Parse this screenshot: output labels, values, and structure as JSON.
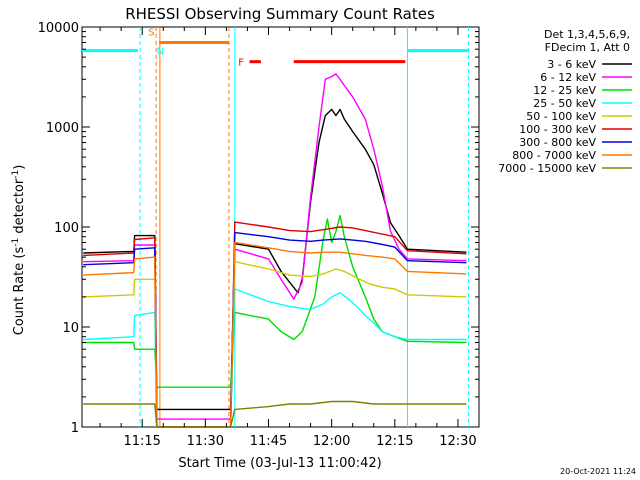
{
  "chart_data": {
    "type": "line",
    "title": "RHESSI Observing Summary Count Rates",
    "xlabel": "Start Time (03-Jul-13 11:00:42)",
    "ylabel": "Count Rate (s",
    "ylabel_sup1": "-1",
    "ylabel_mid": " detector",
    "ylabel_sup2": "-1",
    "ylabel_end": ")",
    "y_scale": "log",
    "ylim": [
      1,
      10000
    ],
    "xlim_minutes": [
      0.7,
      95
    ],
    "x_ticks": [
      {
        "t": 15,
        "label": "11:15"
      },
      {
        "t": 30,
        "label": "11:30"
      },
      {
        "t": 45,
        "label": "11:45"
      },
      {
        "t": 60,
        "label": "12:00"
      },
      {
        "t": 75,
        "label": "12:15"
      },
      {
        "t": 90,
        "label": "12:30"
      }
    ],
    "y_ticks": [
      {
        "v": 1,
        "label": "1"
      },
      {
        "v": 10,
        "label": "10"
      },
      {
        "v": 100,
        "label": "100"
      },
      {
        "v": 1000,
        "label": "1000"
      },
      {
        "v": 10000,
        "label": "10000"
      }
    ],
    "legend_header": [
      "Det 1,3,4,5,6,9,",
      "FDecim 1, Att 0"
    ],
    "legend_position": "right",
    "series": [
      {
        "name": "3 - 6 keV",
        "color": "#000000",
        "points": [
          [
            1,
            55
          ],
          [
            13,
            57
          ],
          [
            13.2,
            82
          ],
          [
            18,
            82
          ],
          [
            18.5,
            1.5
          ],
          [
            36,
            1.5
          ],
          [
            37,
            68
          ],
          [
            45,
            60
          ],
          [
            48,
            36
          ],
          [
            52,
            22
          ],
          [
            53,
            30
          ],
          [
            55,
            180
          ],
          [
            57,
            700
          ],
          [
            58.5,
            1300
          ],
          [
            60,
            1500
          ],
          [
            61,
            1300
          ],
          [
            62,
            1500
          ],
          [
            63,
            1200
          ],
          [
            65,
            900
          ],
          [
            68,
            600
          ],
          [
            70,
            420
          ],
          [
            72,
            220
          ],
          [
            74,
            110
          ],
          [
            76,
            82
          ],
          [
            78,
            60
          ],
          [
            92,
            56
          ]
        ]
      },
      {
        "name": "6 - 12 keV",
        "color": "#ff00ff",
        "points": [
          [
            1,
            45
          ],
          [
            13,
            46
          ],
          [
            13.2,
            66
          ],
          [
            18,
            66
          ],
          [
            18.5,
            1.2
          ],
          [
            36,
            1.2
          ],
          [
            37,
            60
          ],
          [
            45,
            48
          ],
          [
            48,
            30
          ],
          [
            51,
            19
          ],
          [
            53,
            28
          ],
          [
            55,
            200
          ],
          [
            57,
            1000
          ],
          [
            58.5,
            3000
          ],
          [
            60,
            3200
          ],
          [
            61,
            3400
          ],
          [
            62,
            3000
          ],
          [
            63,
            2600
          ],
          [
            65,
            2000
          ],
          [
            68,
            1200
          ],
          [
            70,
            600
          ],
          [
            72,
            260
          ],
          [
            74,
            90
          ],
          [
            76,
            60
          ],
          [
            78,
            48
          ],
          [
            92,
            46
          ]
        ]
      },
      {
        "name": "12 - 25 keV",
        "color": "#00dd00",
        "points": [
          [
            1,
            7
          ],
          [
            13,
            7
          ],
          [
            13.2,
            6
          ],
          [
            18,
            6
          ],
          [
            18.5,
            2.5
          ],
          [
            36,
            2.5
          ],
          [
            37,
            14
          ],
          [
            45,
            12
          ],
          [
            48,
            9
          ],
          [
            51,
            7.5
          ],
          [
            53,
            9
          ],
          [
            56,
            20
          ],
          [
            58,
            75
          ],
          [
            59,
            120
          ],
          [
            60,
            70
          ],
          [
            61,
            90
          ],
          [
            62,
            130
          ],
          [
            63,
            80
          ],
          [
            65,
            40
          ],
          [
            68,
            20
          ],
          [
            70,
            12
          ],
          [
            72,
            9
          ],
          [
            75,
            8
          ],
          [
            78,
            7.2
          ],
          [
            92,
            7
          ]
        ]
      },
      {
        "name": "25 - 50 keV",
        "color": "#00ffff",
        "points": [
          [
            1,
            7.5
          ],
          [
            13,
            8
          ],
          [
            13.2,
            13
          ],
          [
            18,
            14
          ],
          [
            18.5,
            1
          ],
          [
            36,
            1
          ],
          [
            37,
            24
          ],
          [
            45,
            18
          ],
          [
            50,
            16
          ],
          [
            55,
            15
          ],
          [
            58,
            17
          ],
          [
            60,
            20
          ],
          [
            62,
            22
          ],
          [
            64,
            19
          ],
          [
            66,
            16
          ],
          [
            68,
            13
          ],
          [
            70,
            11
          ],
          [
            72,
            9
          ],
          [
            75,
            8
          ],
          [
            78,
            7.5
          ],
          [
            92,
            7.5
          ]
        ]
      },
      {
        "name": "50 - 100 keV",
        "color": "#cccc00",
        "points": [
          [
            1,
            20
          ],
          [
            13,
            21
          ],
          [
            13.2,
            30
          ],
          [
            18,
            30
          ],
          [
            18.5,
            1
          ],
          [
            36,
            1
          ],
          [
            37,
            45
          ],
          [
            45,
            38
          ],
          [
            50,
            33
          ],
          [
            55,
            32
          ],
          [
            58,
            34
          ],
          [
            61,
            38
          ],
          [
            63,
            36
          ],
          [
            66,
            31
          ],
          [
            69,
            27
          ],
          [
            72,
            25
          ],
          [
            75,
            24
          ],
          [
            78,
            21
          ],
          [
            92,
            20
          ]
        ]
      },
      {
        "name": "100 - 300 keV",
        "color": "#dd0000",
        "points": [
          [
            1,
            52
          ],
          [
            13,
            55
          ],
          [
            13.2,
            75
          ],
          [
            18,
            78
          ],
          [
            18.5,
            1
          ],
          [
            36,
            1
          ],
          [
            37,
            112
          ],
          [
            45,
            100
          ],
          [
            50,
            92
          ],
          [
            55,
            90
          ],
          [
            58,
            94
          ],
          [
            62,
            100
          ],
          [
            65,
            98
          ],
          [
            68,
            92
          ],
          [
            72,
            85
          ],
          [
            75,
            80
          ],
          [
            78,
            58
          ],
          [
            92,
            54
          ]
        ]
      },
      {
        "name": "300 - 800 keV",
        "color": "#0000dd",
        "points": [
          [
            1,
            42
          ],
          [
            13,
            44
          ],
          [
            13.2,
            60
          ],
          [
            18,
            62
          ],
          [
            18.5,
            1
          ],
          [
            36,
            1
          ],
          [
            37,
            88
          ],
          [
            45,
            80
          ],
          [
            50,
            74
          ],
          [
            55,
            72
          ],
          [
            58,
            74
          ],
          [
            62,
            76
          ],
          [
            65,
            74
          ],
          [
            68,
            72
          ],
          [
            72,
            67
          ],
          [
            75,
            63
          ],
          [
            78,
            46
          ],
          [
            92,
            44
          ]
        ]
      },
      {
        "name": "800 - 7000 keV",
        "color": "#ff7700",
        "points": [
          [
            1,
            33
          ],
          [
            13,
            35
          ],
          [
            13.2,
            48
          ],
          [
            18,
            50
          ],
          [
            18.5,
            1
          ],
          [
            36,
            1
          ],
          [
            37,
            70
          ],
          [
            45,
            62
          ],
          [
            50,
            57
          ],
          [
            55,
            55
          ],
          [
            58,
            56
          ],
          [
            62,
            56
          ],
          [
            65,
            54
          ],
          [
            68,
            52
          ],
          [
            72,
            50
          ],
          [
            75,
            48
          ],
          [
            78,
            36
          ],
          [
            92,
            34
          ]
        ]
      },
      {
        "name": "7000 - 15000 keV",
        "color": "#808000",
        "points": [
          [
            1,
            1.7
          ],
          [
            13,
            1.7
          ],
          [
            18,
            1.7
          ],
          [
            18.5,
            1
          ],
          [
            36,
            1
          ],
          [
            37,
            1.5
          ],
          [
            45,
            1.6
          ],
          [
            50,
            1.7
          ],
          [
            55,
            1.7
          ],
          [
            60,
            1.8
          ],
          [
            65,
            1.8
          ],
          [
            70,
            1.7
          ],
          [
            75,
            1.7
          ],
          [
            78,
            1.7
          ],
          [
            92,
            1.7
          ]
        ]
      }
    ],
    "flags": {
      "saa_mark": "S",
      "night_mark": "N",
      "flare_mark": "F",
      "night_color": "#00ffff",
      "saa_color": "#ff7700",
      "flare_color": "#ff0000"
    }
  },
  "footer_date": "20-Oct-2021 11:24"
}
